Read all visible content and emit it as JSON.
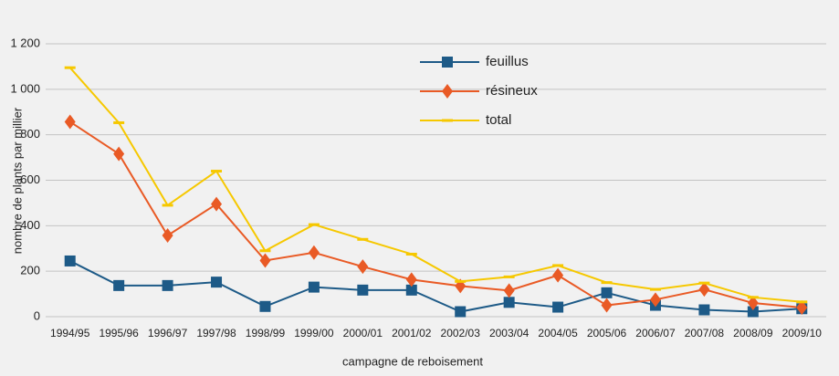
{
  "chart_data": {
    "type": "line",
    "x_label": "campagne de reboisement",
    "y_label": "nombre de plants par millier",
    "categories": [
      "1994/95",
      "1995/96",
      "1996/97",
      "1997/98",
      "1998/99",
      "1999/00",
      "2000/01",
      "2001/02",
      "2002/03",
      "2003/04",
      "2004/05",
      "2005/06",
      "2006/07",
      "2007/08",
      "2008/09",
      "2009/10"
    ],
    "series": [
      {
        "name": "feuillus",
        "color": "#1d5a87",
        "marker": "square",
        "values": [
          245,
          137,
          137,
          152,
          45,
          130,
          117,
          117,
          22,
          63,
          42,
          105,
          50,
          30,
          22,
          35
        ]
      },
      {
        "name": "résineux",
        "color": "#e95a25",
        "marker": "diamond",
        "values": [
          857,
          716,
          357,
          495,
          247,
          282,
          220,
          163,
          135,
          115,
          182,
          50,
          75,
          120,
          60,
          40
        ]
      },
      {
        "name": "total",
        "color": "#f6c800",
        "marker": "dash",
        "values": [
          1095,
          853,
          490,
          640,
          290,
          405,
          340,
          275,
          155,
          175,
          225,
          150,
          120,
          148,
          85,
          65
        ]
      }
    ],
    "ylim": [
      0,
      1200
    ],
    "yticks": [
      0,
      200,
      400,
      600,
      800,
      {
        "value": 1000,
        "label": "1 000"
      },
      {
        "value": 1200,
        "label": "1 200"
      }
    ],
    "grid": true
  }
}
